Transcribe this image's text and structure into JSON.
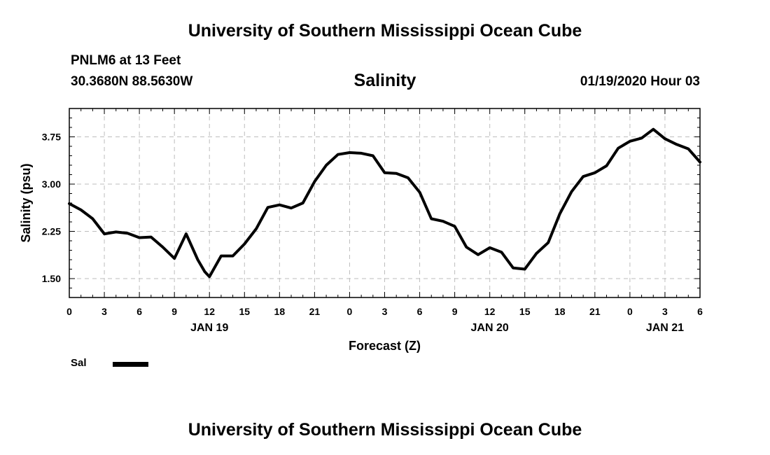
{
  "header": {
    "title": "University of Southern Mississippi Ocean Cube",
    "station": "PNLM6 at 13 Feet",
    "coords": "30.3680N 88.5630W",
    "variable": "Salinity",
    "datetime": "01/19/2020 Hour 03"
  },
  "footer": {
    "title": "University of Southern Mississippi Ocean Cube"
  },
  "legend": {
    "label": "Sal",
    "color": "#000000"
  },
  "chart_data": {
    "type": "line",
    "title": "Salinity",
    "xlabel": "Forecast (Z)",
    "ylabel": "Salinity (psu)",
    "xlim": [
      0,
      54
    ],
    "ylim": [
      1.2,
      4.2
    ],
    "grid": true,
    "x_tick_values": [
      0,
      3,
      6,
      9,
      12,
      15,
      18,
      21,
      24,
      27,
      30,
      33,
      36,
      39,
      42,
      45,
      48,
      51,
      54
    ],
    "x_tick_labels": [
      "0",
      "3",
      "6",
      "9",
      "12",
      "15",
      "18",
      "21",
      "0",
      "3",
      "6",
      "9",
      "12",
      "15",
      "18",
      "21",
      "0",
      "3",
      "6"
    ],
    "y_tick_values": [
      1.5,
      2.25,
      3.0,
      3.75
    ],
    "y_tick_labels": [
      "1.50",
      "2.25",
      "3.00",
      "3.75"
    ],
    "day_labels": [
      {
        "x": 12,
        "label": "JAN 19"
      },
      {
        "x": 36,
        "label": "JAN 20"
      },
      {
        "x": 51,
        "label": "JAN 21"
      }
    ],
    "series": [
      {
        "name": "Sal",
        "color": "#000000",
        "x": [
          0,
          1,
          2,
          3,
          4,
          5,
          6,
          7,
          8,
          9,
          10,
          11,
          11.6,
          12,
          13,
          14,
          15,
          16,
          17,
          18,
          19,
          20,
          21,
          22,
          23,
          24,
          25,
          26,
          27,
          28,
          29,
          30,
          31,
          32,
          33,
          34,
          35,
          36,
          37,
          38,
          39,
          40,
          41,
          42,
          43,
          44,
          45,
          46,
          47,
          48,
          49,
          50,
          51,
          52,
          53,
          54
        ],
        "values": [
          2.69,
          2.59,
          2.45,
          2.21,
          2.24,
          2.22,
          2.15,
          2.16,
          2.0,
          1.82,
          2.21,
          1.8,
          1.61,
          1.53,
          1.86,
          1.86,
          2.05,
          2.29,
          2.63,
          2.67,
          2.62,
          2.7,
          3.04,
          3.3,
          3.47,
          3.5,
          3.49,
          3.45,
          3.18,
          3.17,
          3.1,
          2.87,
          2.45,
          2.41,
          2.33,
          2.0,
          1.88,
          1.99,
          1.92,
          1.67,
          1.65,
          1.9,
          2.07,
          2.53,
          2.88,
          3.12,
          3.18,
          3.29,
          3.57,
          3.68,
          3.73,
          3.87,
          3.72,
          3.63,
          3.56,
          3.35
        ]
      }
    ]
  }
}
